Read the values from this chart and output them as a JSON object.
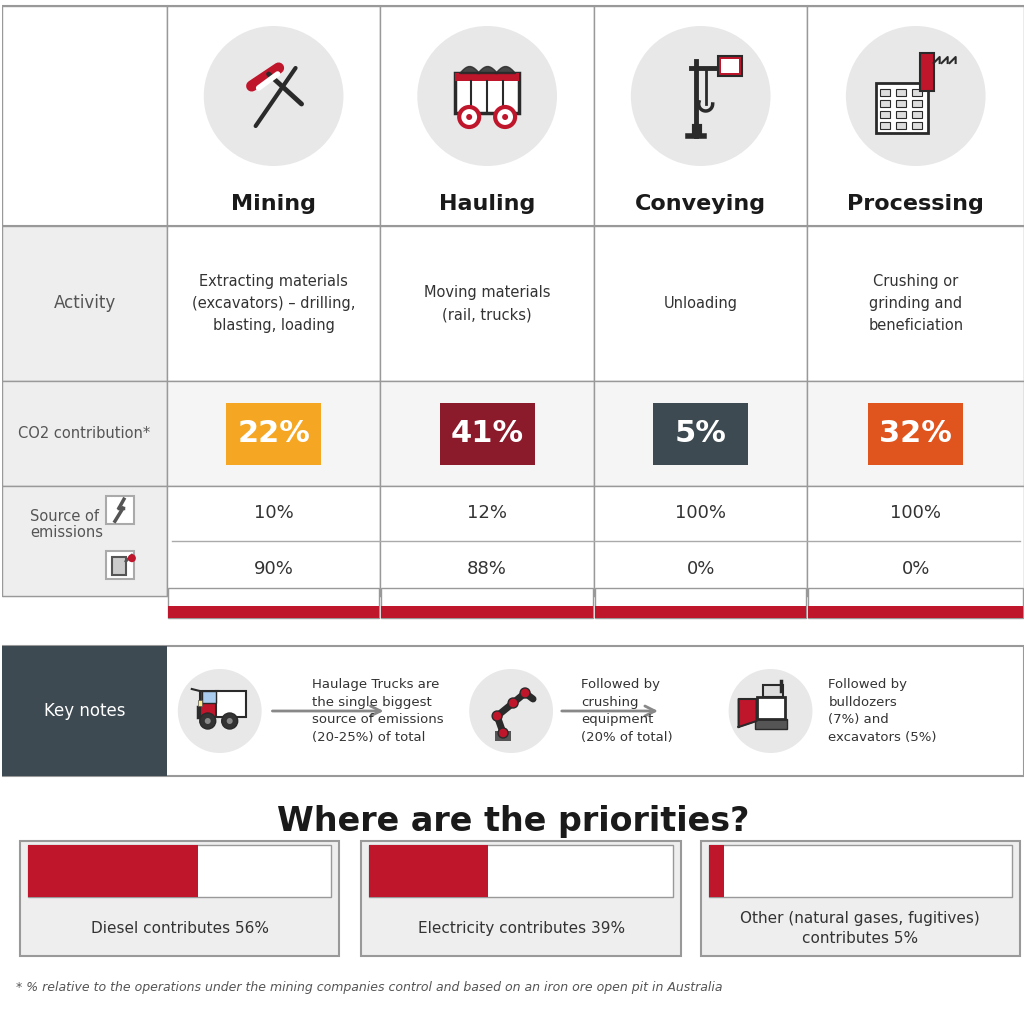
{
  "bg_color": "#ffffff",
  "border_color": "#999999",
  "dark_bg": "#3d4a52",
  "red_color": "#c0162c",
  "orange_color": "#f5a623",
  "dark_red_color": "#8b1a2a",
  "orange2_color": "#e0541e",
  "gray_bg": "#eeeeee",
  "light_gray": "#f5f5f5",
  "columns": [
    "Mining",
    "Hauling",
    "Conveying",
    "Processing"
  ],
  "activity_texts": [
    "Extracting materials\n(excavators) – drilling,\nblasting, loading",
    "Moving materials\n(rail, trucks)",
    "Unloading",
    "Crushing or\ngrinding and\nbeneficiation"
  ],
  "co2_values": [
    "22%",
    "41%",
    "5%",
    "32%"
  ],
  "co2_colors": [
    "#f5a623",
    "#8b1a2a",
    "#3d4a52",
    "#e0541e"
  ],
  "elec_pct": [
    "10%",
    "12%",
    "100%",
    "100%"
  ],
  "diesel_pct": [
    "90%",
    "88%",
    "0%",
    "0%"
  ],
  "keynote_texts": [
    "Haulage Trucks are\nthe single biggest\nsource of emissions\n(20-25%) of total",
    "Followed by\ncrushing\nequipment\n(20% of total)",
    "Followed by\nbulldozers\n(7%) and\nexcavators (5%)"
  ],
  "priority_title": "Where are the priorities?",
  "priority_bars": [
    {
      "label": "Diesel contributes 56%",
      "pct": 0.56
    },
    {
      "label": "Electricity contributes 39%",
      "pct": 0.39
    },
    {
      "label": "Other (natural gases, fugitives)\ncontributes 5%",
      "pct": 0.05
    }
  ],
  "footnote": "* % relative to the operations under the mining companies control and based on an iron ore open pit in Australia"
}
